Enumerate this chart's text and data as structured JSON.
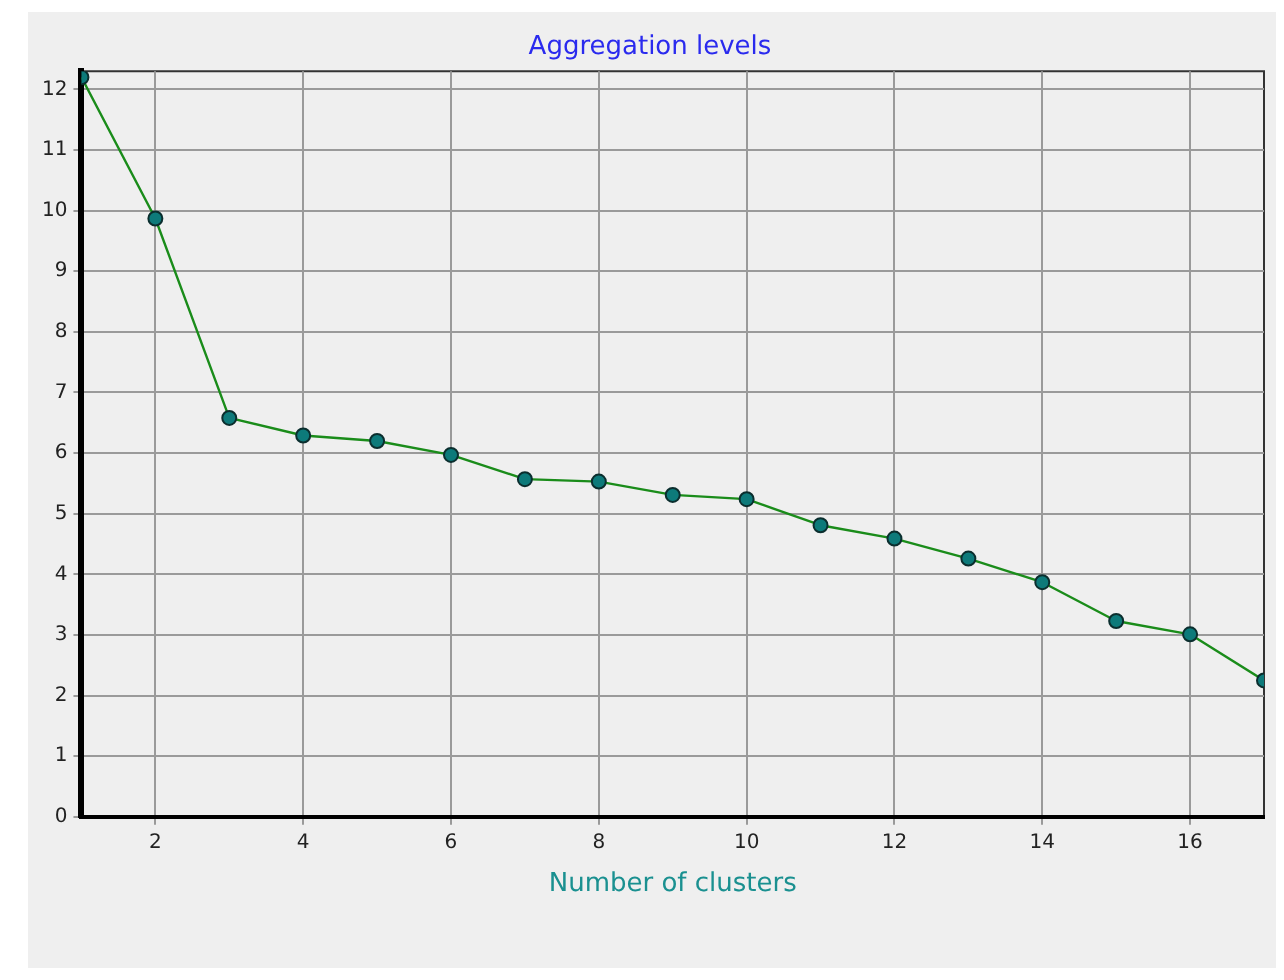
{
  "chart_data": {
    "type": "line",
    "title": "Aggregation levels",
    "xlabel": "Number of clusters",
    "x": [
      1,
      2,
      3,
      4,
      5,
      6,
      7,
      8,
      9,
      10,
      11,
      12,
      13,
      14,
      15,
      16,
      17
    ],
    "series": [
      {
        "color": "#1a8c1a",
        "values": [
          12.2,
          9.87,
          6.58,
          6.29,
          6.2,
          5.97,
          5.57,
          5.53,
          5.31,
          5.24,
          4.81,
          4.59,
          4.26,
          3.87,
          3.23,
          3.01,
          2.25
        ]
      }
    ],
    "xlim": [
      1,
      17
    ],
    "xticks": [
      2,
      4,
      6,
      8,
      10,
      12,
      14,
      16
    ],
    "ylim": [
      0,
      12.3
    ],
    "yticks": [
      0,
      1,
      2,
      3,
      4,
      5,
      6,
      7,
      8,
      9,
      10,
      11,
      12
    ],
    "grid": true,
    "legend": false,
    "marker": "circle",
    "line_style": "solid"
  }
}
